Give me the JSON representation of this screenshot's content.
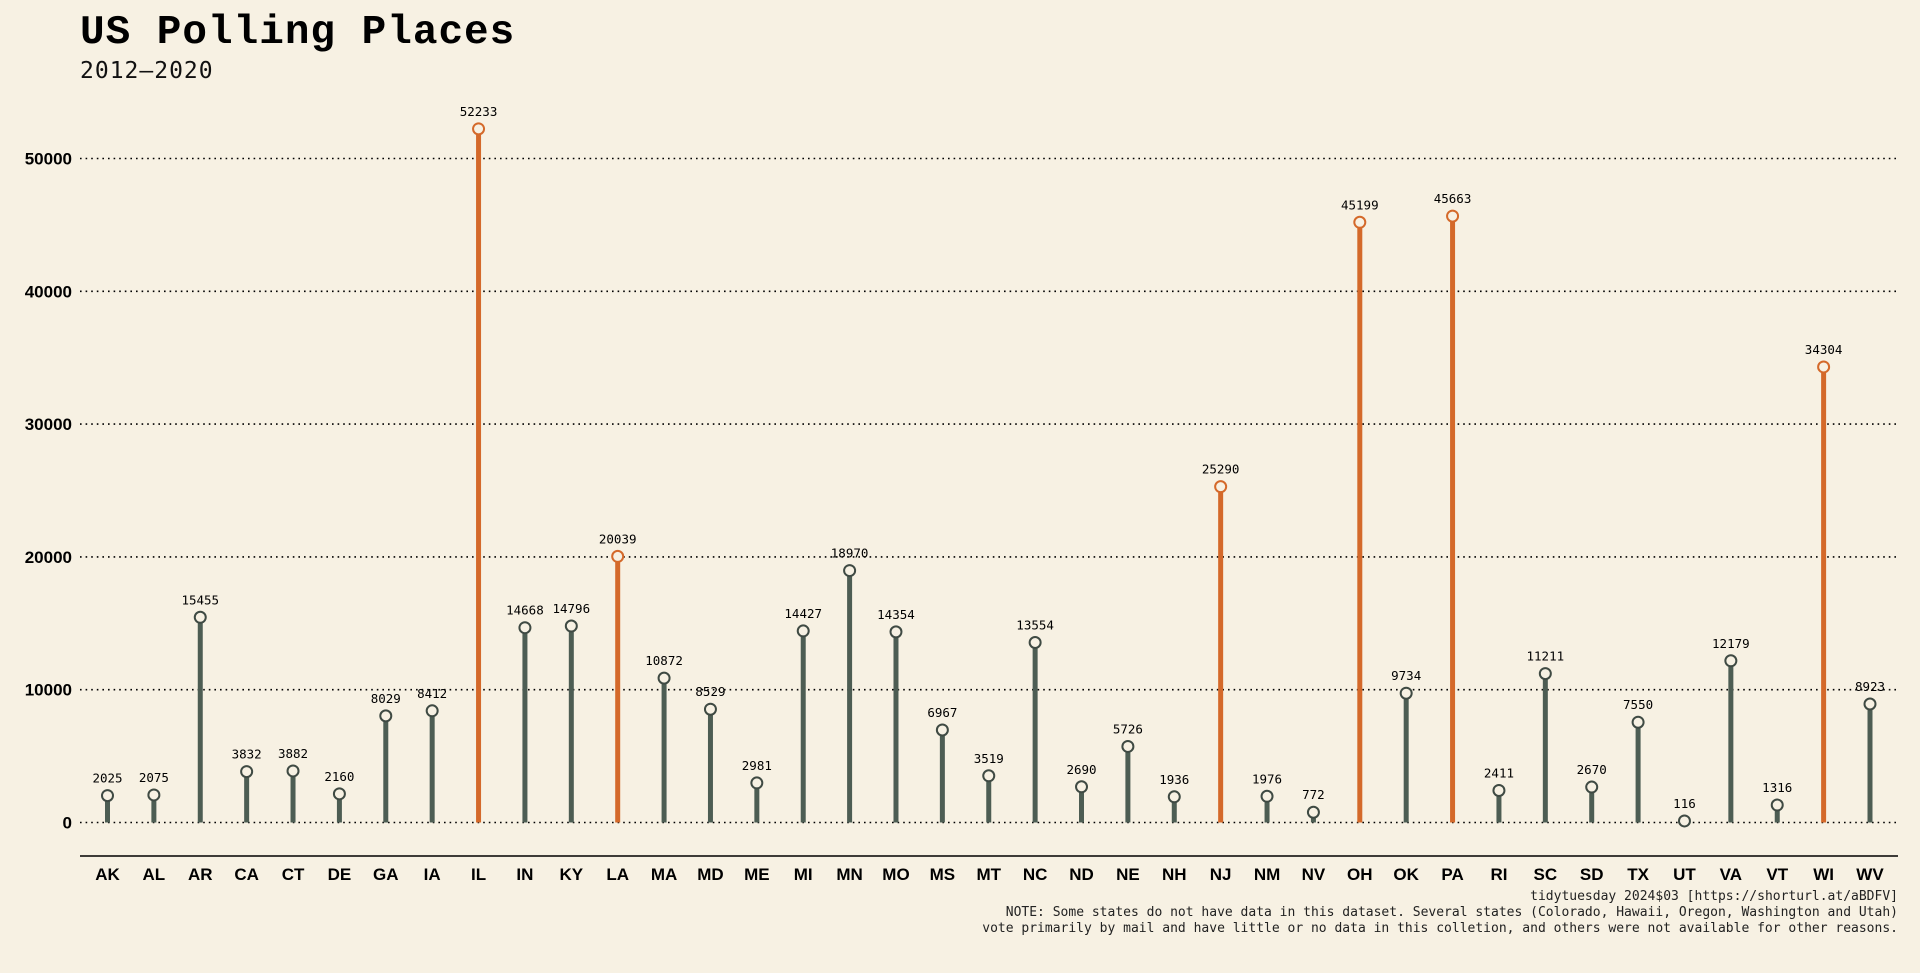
{
  "header": {
    "title": "US Polling Places",
    "subtitle": "2012–2020"
  },
  "footer": {
    "source": "tidytuesday 2024$03 [https://shorturl.at/aBDFV]",
    "note_line1": "NOTE: Some states do not have data in this dataset. Several states (Colorado, Hawaii, Oregon, Washington and Utah)",
    "note_line2": "vote primarily by mail and have little or no data in this colletion, and others were not available for other reasons."
  },
  "colors": {
    "background": "#f7f1e3",
    "default_stem": "#4d5d53",
    "highlight_stem": "#d4692a",
    "marker_fill": "#f7f1e3",
    "grid": "#000000"
  },
  "chart_data": {
    "type": "lollipop",
    "title": "US Polling Places",
    "subtitle": "2012–2020",
    "xlabel": "",
    "ylabel": "",
    "ylim": [
      0,
      55000
    ],
    "yticks": [
      0,
      10000,
      20000,
      30000,
      40000,
      50000
    ],
    "grid": "horizontal dotted",
    "legend": "none",
    "highlight_rule": "value > 20000 shown in orange",
    "categories": [
      "AK",
      "AL",
      "AR",
      "CA",
      "CT",
      "DE",
      "GA",
      "IA",
      "IL",
      "IN",
      "KY",
      "LA",
      "MA",
      "MD",
      "ME",
      "MI",
      "MN",
      "MO",
      "MS",
      "MT",
      "NC",
      "ND",
      "NE",
      "NH",
      "NJ",
      "NM",
      "NV",
      "OH",
      "OK",
      "PA",
      "RI",
      "SC",
      "SD",
      "TX",
      "UT",
      "VA",
      "VT",
      "WI",
      "WV"
    ],
    "values": [
      2025,
      2075,
      15455,
      3832,
      3882,
      2160,
      8029,
      8412,
      52233,
      14668,
      14796,
      20039,
      10872,
      8529,
      2981,
      14427,
      18970,
      14354,
      6967,
      3519,
      13554,
      2690,
      5726,
      1936,
      25290,
      1976,
      772,
      45199,
      9734,
      45663,
      2411,
      11211,
      2670,
      7550,
      116,
      12179,
      1316,
      34304,
      8923
    ],
    "highlight": [
      false,
      false,
      false,
      false,
      false,
      false,
      false,
      false,
      true,
      false,
      false,
      true,
      false,
      false,
      false,
      false,
      false,
      false,
      false,
      false,
      false,
      false,
      false,
      false,
      true,
      false,
      false,
      true,
      false,
      true,
      false,
      false,
      false,
      false,
      false,
      false,
      false,
      true,
      false
    ]
  }
}
